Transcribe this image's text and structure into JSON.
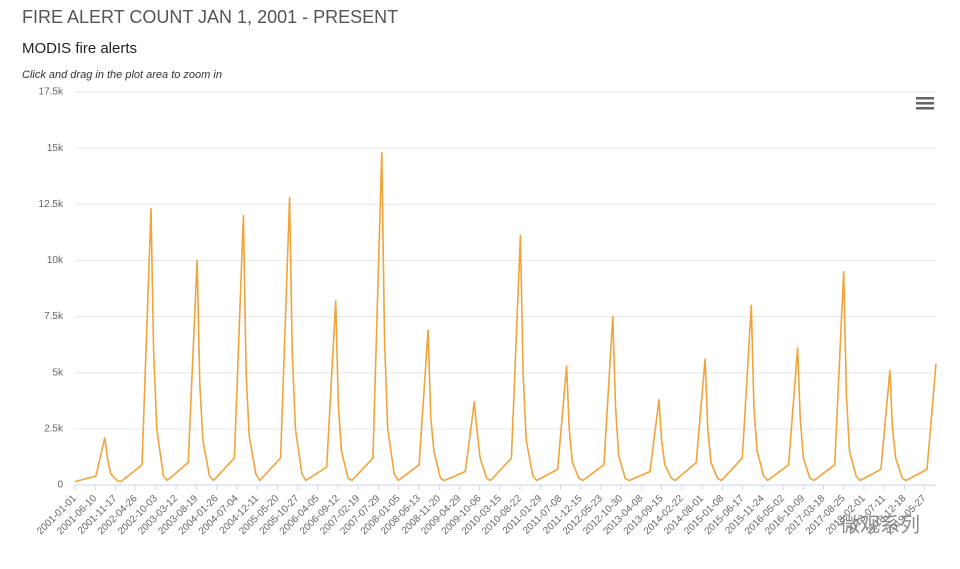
{
  "chart_data": {
    "type": "line",
    "title": "FIRE ALERT COUNT JAN 1, 2001 - PRESENT",
    "subtitle": "MODIS fire alerts",
    "note": "Click and drag in the plot area to zoom in",
    "watermark": "微观系列",
    "color": "#f2a33a",
    "grid": true,
    "ylim": [
      0,
      17500
    ],
    "yticks": [
      0,
      {
        "value": 2500,
        "label": "2.5k"
      },
      {
        "value": 5000,
        "label": "5k"
      },
      {
        "value": 7500,
        "label": "7.5k"
      },
      {
        "value": 10000,
        "label": "10k"
      },
      {
        "value": 12500,
        "label": "12.5k"
      },
      {
        "value": 15000,
        "label": "15k"
      },
      {
        "value": 17500,
        "label": "17.5k"
      }
    ],
    "xlim": [
      "2001-01-01",
      "2019-08-25"
    ],
    "xticks": [
      "2001-01-01",
      "2001-06-10",
      "2001-11-17",
      "2002-04-26",
      "2002-10-03",
      "2003-03-12",
      "2003-08-19",
      "2004-01-26",
      "2004-07-04",
      "2004-12-11",
      "2005-05-20",
      "2005-10-27",
      "2006-04-05",
      "2006-09-12",
      "2007-02-19",
      "2007-07-29",
      "2008-01-05",
      "2008-06-13",
      "2008-11-20",
      "2009-04-29",
      "2009-10-06",
      "2010-03-15",
      "2010-08-22",
      "2011-01-29",
      "2011-07-08",
      "2011-12-15",
      "2012-05-23",
      "2012-10-30",
      "2013-04-08",
      "2013-09-15",
      "2014-02-22",
      "2014-08-01",
      "2015-01-08",
      "2015-06-17",
      "2015-11-24",
      "2016-05-02",
      "2016-10-09",
      "2017-03-18",
      "2017-08-25",
      "2018-02-01",
      "2018-07-11",
      "2018-12-18",
      "2019-05-27"
    ],
    "x": [
      "2001-01-01",
      "2001-06-15",
      "2001-08-25",
      "2001-09-15",
      "2001-10-10",
      "2001-12-01",
      "2002-01-01",
      "2002-06-15",
      "2002-08-25",
      "2002-09-15",
      "2002-10-10",
      "2002-12-01",
      "2003-01-01",
      "2003-06-15",
      "2003-08-25",
      "2003-09-15",
      "2003-10-10",
      "2003-12-01",
      "2004-01-01",
      "2004-06-15",
      "2004-08-25",
      "2004-09-15",
      "2004-10-10",
      "2004-12-01",
      "2005-01-01",
      "2005-06-15",
      "2005-08-25",
      "2005-09-15",
      "2005-10-10",
      "2005-12-01",
      "2006-01-01",
      "2006-06-15",
      "2006-08-25",
      "2006-09-15",
      "2006-10-10",
      "2006-12-01",
      "2007-01-01",
      "2007-06-15",
      "2007-08-25",
      "2007-09-15",
      "2007-10-10",
      "2007-12-01",
      "2008-01-01",
      "2008-06-15",
      "2008-08-25",
      "2008-09-15",
      "2008-10-10",
      "2008-12-01",
      "2009-01-01",
      "2009-06-15",
      "2009-08-25",
      "2009-09-15",
      "2009-10-10",
      "2009-12-01",
      "2010-01-01",
      "2010-06-15",
      "2010-08-25",
      "2010-09-15",
      "2010-10-10",
      "2010-12-01",
      "2011-01-01",
      "2011-06-15",
      "2011-08-25",
      "2011-09-15",
      "2011-10-10",
      "2011-12-01",
      "2012-01-01",
      "2012-06-15",
      "2012-08-25",
      "2012-09-15",
      "2012-10-10",
      "2012-12-01",
      "2013-01-01",
      "2013-06-15",
      "2013-08-25",
      "2013-09-15",
      "2013-10-10",
      "2013-12-01",
      "2014-01-01",
      "2014-06-15",
      "2014-08-25",
      "2014-09-15",
      "2014-10-10",
      "2014-12-01",
      "2015-01-01",
      "2015-06-15",
      "2015-08-25",
      "2015-09-15",
      "2015-10-10",
      "2015-12-01",
      "2016-01-01",
      "2016-06-15",
      "2016-08-25",
      "2016-09-15",
      "2016-10-10",
      "2016-12-01",
      "2017-01-01",
      "2017-06-15",
      "2017-08-25",
      "2017-09-15",
      "2017-10-10",
      "2017-12-01",
      "2018-01-01",
      "2018-06-15",
      "2018-08-25",
      "2018-09-15",
      "2018-10-10",
      "2018-12-01",
      "2019-01-01",
      "2019-06-15",
      "2019-08-25"
    ],
    "values": [
      150,
      400,
      2100,
      1200,
      500,
      200,
      150,
      900,
      12300,
      6000,
      2500,
      400,
      200,
      1000,
      10000,
      4500,
      2000,
      400,
      200,
      1200,
      12000,
      5000,
      2200,
      500,
      200,
      1200,
      12800,
      6000,
      2500,
      500,
      200,
      800,
      8200,
      3500,
      1500,
      300,
      200,
      1200,
      14800,
      6500,
      2500,
      500,
      200,
      900,
      6900,
      3000,
      1500,
      300,
      200,
      600,
      3700,
      2500,
      1200,
      300,
      200,
      1200,
      11100,
      5000,
      2000,
      400,
      200,
      700,
      5300,
      2500,
      1000,
      300,
      200,
      900,
      7500,
      3500,
      1300,
      300,
      200,
      600,
      3800,
      2000,
      900,
      300,
      200,
      1000,
      5600,
      2500,
      1000,
      300,
      200,
      1200,
      8000,
      3500,
      1500,
      400,
      200,
      900,
      6100,
      3000,
      1200,
      300,
      200,
      900,
      9500,
      4000,
      1500,
      400,
      200,
      700,
      5100,
      2500,
      1200,
      300,
      200,
      700,
      5400
    ]
  }
}
